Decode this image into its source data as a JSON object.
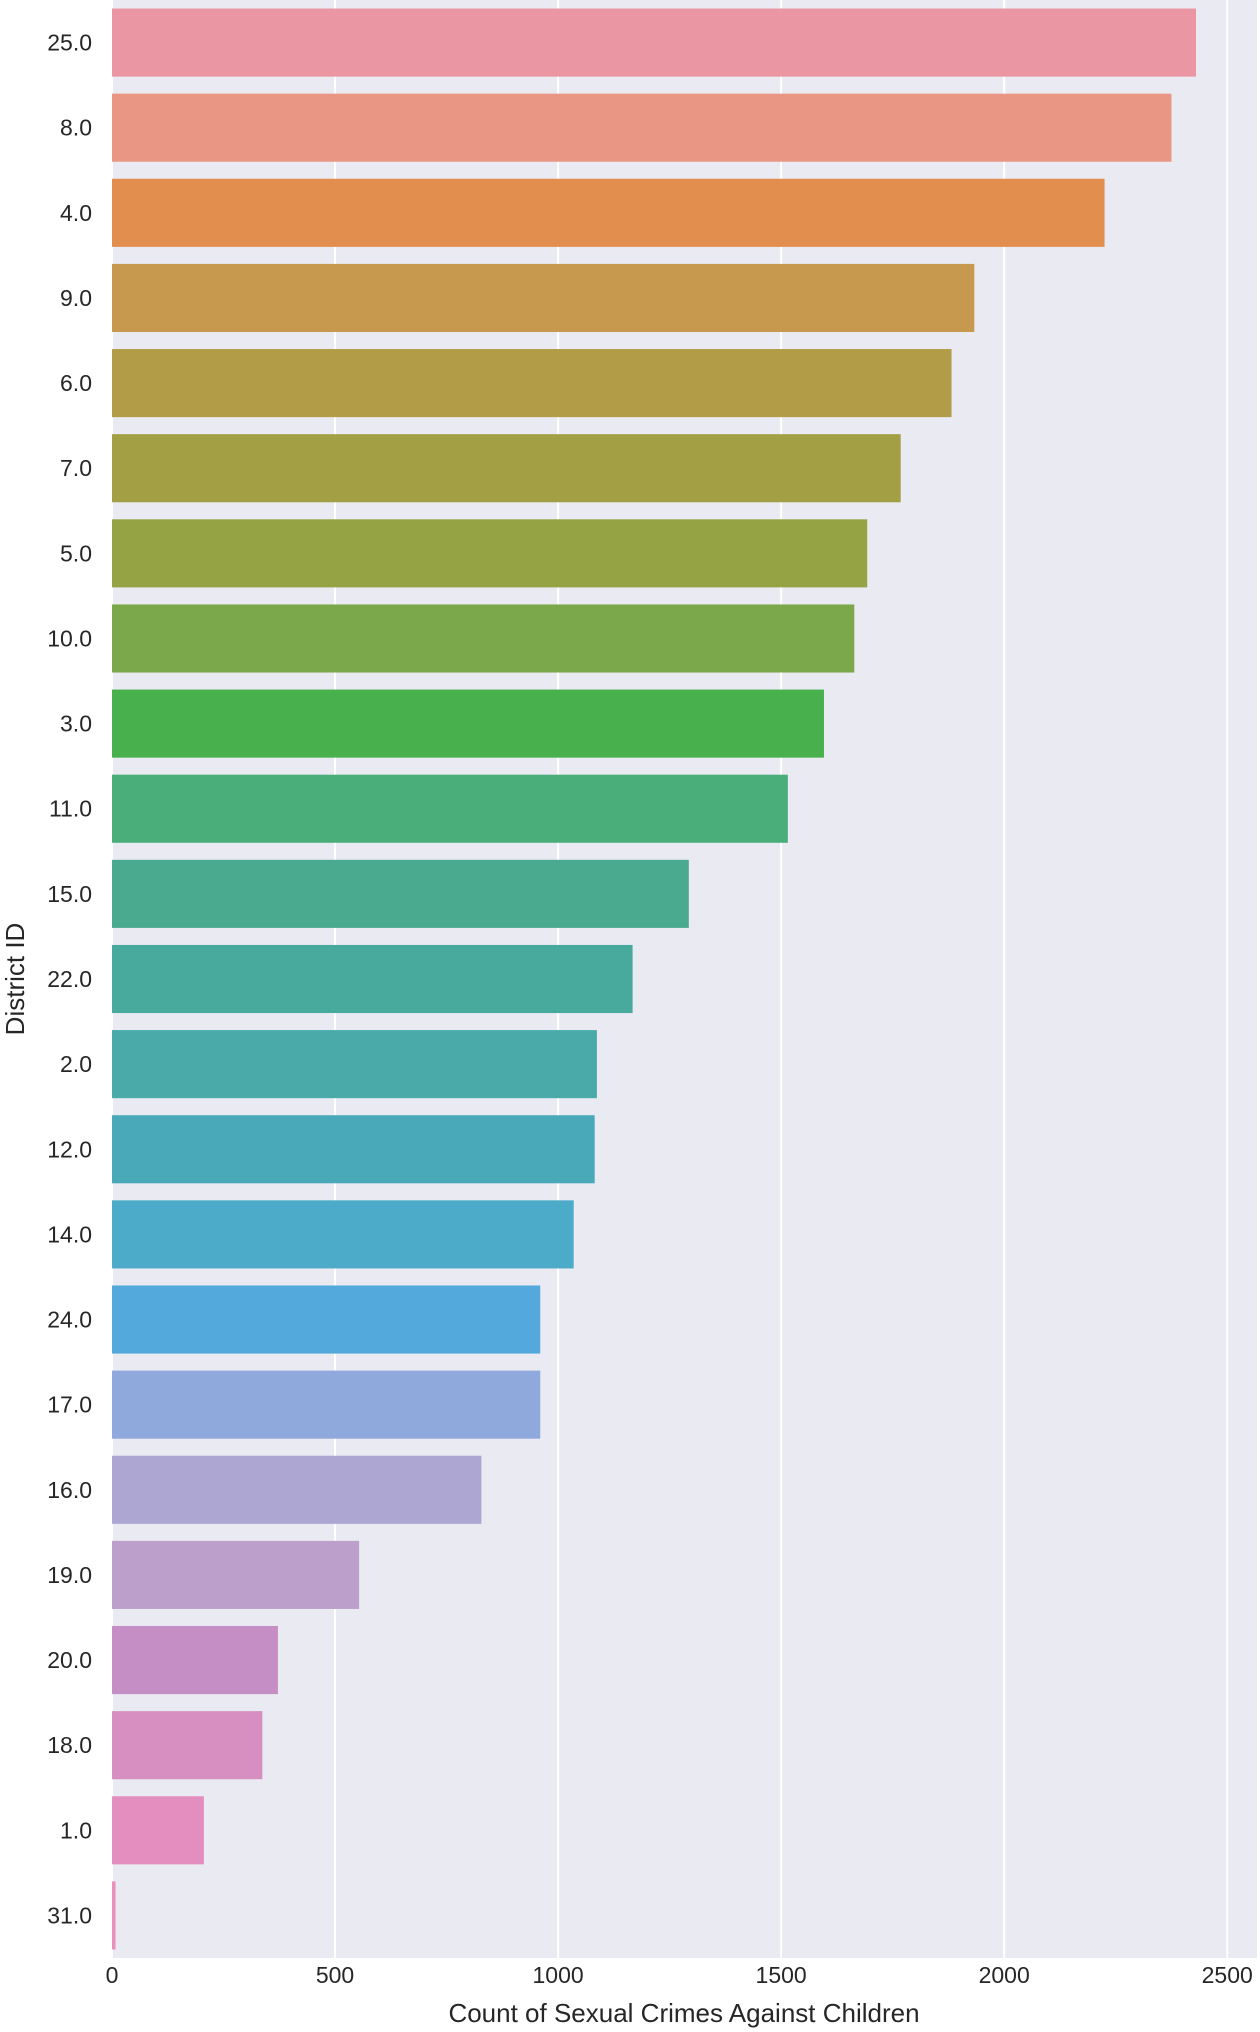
{
  "chart_data": {
    "type": "bar",
    "orientation": "horizontal",
    "title": "",
    "xlabel": "Count of Sexual Crimes Against Children",
    "ylabel": "District ID",
    "xlim": [
      0,
      2550
    ],
    "xticks": [
      0,
      500,
      1000,
      1500,
      2000,
      2500
    ],
    "grid": true,
    "categories": [
      "25.0",
      "8.0",
      "4.0",
      "9.0",
      "6.0",
      "7.0",
      "5.0",
      "10.0",
      "3.0",
      "11.0",
      "15.0",
      "22.0",
      "2.0",
      "12.0",
      "14.0",
      "24.0",
      "17.0",
      "16.0",
      "19.0",
      "20.0",
      "18.0",
      "1.0",
      "31.0"
    ],
    "values": [
      2430,
      2375,
      2225,
      1933,
      1882,
      1768,
      1693,
      1664,
      1596,
      1515,
      1293,
      1167,
      1087,
      1082,
      1035,
      960,
      960,
      828,
      554,
      372,
      337,
      206,
      8
    ],
    "colors": [
      "#ea96a3",
      "#e99784",
      "#e18e4f",
      "#c6994f",
      "#b29c48",
      "#a39f44",
      "#95a344",
      "#7aa84a",
      "#48b04c",
      "#49ae7a",
      "#4aaa8f",
      "#48aa9c",
      "#4aaaaa",
      "#4aa9b8",
      "#4cabc9",
      "#53a9dc",
      "#8fa9dd",
      "#ada6d3",
      "#bd9fcc",
      "#c58fc6",
      "#d68fc0",
      "#e48ec0",
      "#e990bd"
    ]
  }
}
